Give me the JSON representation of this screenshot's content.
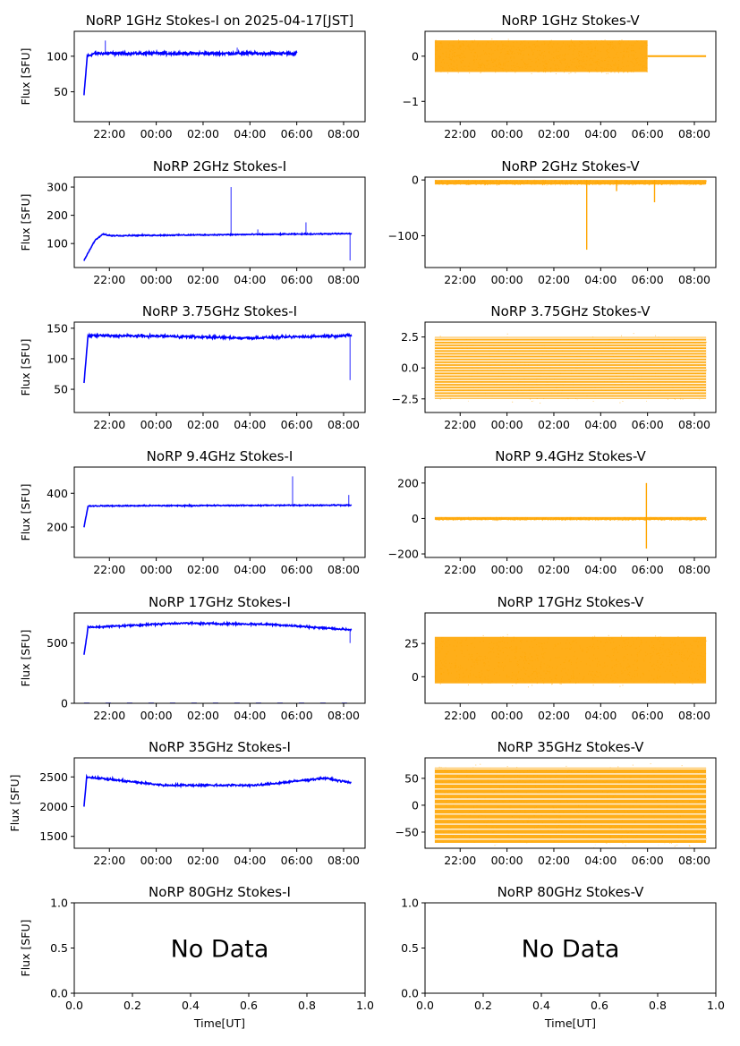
{
  "figure": {
    "x_tick_labels": [
      "22:00",
      "00:00",
      "02:00",
      "04:00",
      "06:00",
      "08:00"
    ],
    "ylabel": "Flux [SFU]",
    "xlabel": "Time[UT]",
    "no_data_text": "No Data"
  },
  "chart_data": [
    {
      "id": "1ghz-i",
      "type": "line",
      "title": "NoRP 1GHz Stokes-I on 2025-04-17[JST]",
      "color": "#0000ff",
      "x_start": "20:55",
      "x_end": "06:00",
      "ylim": [
        8,
        135
      ],
      "yticks": [
        50,
        100
      ],
      "shape": [
        [
          0,
          45
        ],
        [
          0.015,
          100
        ],
        [
          0.05,
          104
        ],
        [
          1,
          104
        ]
      ],
      "noise": 3,
      "spikes": [
        [
          0.1,
          122
        ],
        [
          0.72,
          112
        ]
      ],
      "has_data": true
    },
    {
      "id": "1ghz-v",
      "type": "scatter",
      "title": "NoRP 1GHz Stokes-V",
      "color": "#ffa500",
      "x_start": "20:55",
      "x_end": "08:30",
      "ylim": [
        -1.45,
        0.55
      ],
      "yticks": [
        -1,
        0
      ],
      "band": [
        -0.35,
        0.35
      ],
      "band_end": "06:00",
      "has_data": true
    },
    {
      "id": "2ghz-i",
      "type": "line",
      "title": "NoRP 2GHz Stokes-I",
      "color": "#0000ff",
      "x_start": "20:55",
      "x_end": "08:20",
      "ylim": [
        15,
        335
      ],
      "yticks": [
        100,
        200,
        300
      ],
      "shape": [
        [
          0,
          40
        ],
        [
          0.04,
          110
        ],
        [
          0.07,
          133
        ],
        [
          0.1,
          128
        ],
        [
          1,
          135
        ]
      ],
      "noise": 3,
      "spikes": [
        [
          0.55,
          300
        ],
        [
          0.65,
          150
        ],
        [
          0.83,
          175
        ],
        [
          0.995,
          40
        ]
      ],
      "has_data": true
    },
    {
      "id": "2ghz-v",
      "type": "scatter",
      "title": "NoRP 2GHz Stokes-V",
      "color": "#ffa500",
      "x_start": "20:55",
      "x_end": "08:30",
      "ylim": [
        -157,
        5
      ],
      "yticks": [
        -100,
        0
      ],
      "band": [
        -8,
        0
      ],
      "spikes": [
        [
          0.56,
          -125
        ],
        [
          0.67,
          -20
        ],
        [
          0.81,
          -40
        ]
      ],
      "has_data": true
    },
    {
      "id": "3ghz-i",
      "type": "line",
      "title": "NoRP 3.75GHz Stokes-I",
      "color": "#0000ff",
      "x_start": "20:55",
      "x_end": "08:20",
      "ylim": [
        12,
        160
      ],
      "yticks": [
        50,
        100,
        150
      ],
      "shape": [
        [
          0,
          60
        ],
        [
          0.015,
          138
        ],
        [
          0.3,
          137
        ],
        [
          0.6,
          134
        ],
        [
          1,
          138
        ]
      ],
      "noise": 3,
      "spikes": [
        [
          0.995,
          65
        ]
      ],
      "has_data": true
    },
    {
      "id": "3ghz-v",
      "type": "scatter",
      "title": "NoRP 3.75GHz Stokes-V",
      "color": "#ffa500",
      "x_start": "20:55",
      "x_end": "08:30",
      "ylim": [
        -3.6,
        3.7
      ],
      "yticks": [
        -2.5,
        0.0,
        2.5
      ],
      "band": [
        -2.5,
        2.5
      ],
      "has_data": true
    },
    {
      "id": "9ghz-i",
      "type": "line",
      "title": "NoRP 9.4GHz Stokes-I",
      "color": "#0000ff",
      "x_start": "20:55",
      "x_end": "08:20",
      "ylim": [
        20,
        555
      ],
      "yticks": [
        200,
        400
      ],
      "shape": [
        [
          0,
          200
        ],
        [
          0.015,
          325
        ],
        [
          1,
          330
        ]
      ],
      "noise": 5,
      "spikes": [
        [
          0.78,
          500
        ],
        [
          0.99,
          390
        ]
      ],
      "has_data": true
    },
    {
      "id": "9ghz-v",
      "type": "scatter",
      "title": "NoRP 9.4GHz Stokes-V",
      "color": "#ffa500",
      "x_start": "20:55",
      "x_end": "08:30",
      "ylim": [
        -220,
        290
      ],
      "yticks": [
        -200,
        0,
        200
      ],
      "band": [
        -8,
        8
      ],
      "spikes": [
        [
          0.78,
          200
        ],
        [
          0.78,
          -170
        ]
      ],
      "has_data": true
    },
    {
      "id": "17ghz-i",
      "type": "line",
      "title": "NoRP 17GHz Stokes-I",
      "color": "#0000ff",
      "x_start": "20:55",
      "x_end": "08:20",
      "ylim": [
        0,
        750
      ],
      "yticks": [
        0,
        500
      ],
      "shape": [
        [
          0,
          400
        ],
        [
          0.015,
          630
        ],
        [
          0.35,
          665
        ],
        [
          0.7,
          655
        ],
        [
          1,
          610
        ]
      ],
      "noise": 12,
      "spikes": [
        [
          0.995,
          500
        ]
      ],
      "has_data": true
    },
    {
      "id": "17ghz-v",
      "type": "scatter",
      "title": "NoRP 17GHz Stokes-V",
      "color": "#ffa500",
      "x_start": "20:55",
      "x_end": "08:30",
      "ylim": [
        -20,
        48
      ],
      "yticks": [
        0,
        25
      ],
      "band": [
        -5,
        30
      ],
      "has_data": true
    },
    {
      "id": "35ghz-i",
      "type": "line",
      "title": "NoRP 35GHz Stokes-I",
      "color": "#0000ff",
      "x_start": "20:55",
      "x_end": "08:20",
      "ylim": [
        1300,
        2820
      ],
      "yticks": [
        1500,
        2000,
        2500
      ],
      "shape": [
        [
          0,
          2000
        ],
        [
          0.01,
          2500
        ],
        [
          0.3,
          2360
        ],
        [
          0.65,
          2360
        ],
        [
          0.9,
          2480
        ],
        [
          1,
          2400
        ]
      ],
      "noise": 25,
      "has_data": true
    },
    {
      "id": "35ghz-v",
      "type": "scatter",
      "title": "NoRP 35GHz Stokes-V",
      "color": "#ffa500",
      "x_start": "20:55",
      "x_end": "08:30",
      "ylim": [
        -80,
        88
      ],
      "yticks": [
        -50,
        0,
        50
      ],
      "band": [
        -70,
        70
      ],
      "has_data": true
    },
    {
      "id": "80ghz-i",
      "type": "none",
      "title": "NoRP 80GHz Stokes-I",
      "ylim": [
        0,
        1
      ],
      "yticks": [
        0.0,
        0.5,
        1.0
      ],
      "xticks": [
        0.0,
        0.2,
        0.4,
        0.6,
        0.8,
        1.0
      ],
      "has_data": false
    },
    {
      "id": "80ghz-v",
      "type": "none",
      "title": "NoRP 80GHz Stokes-V",
      "ylim": [
        0,
        1
      ],
      "yticks": [
        0.0,
        0.5,
        1.0
      ],
      "xticks": [
        0.0,
        0.2,
        0.4,
        0.6,
        0.8,
        1.0
      ],
      "has_data": false
    }
  ]
}
